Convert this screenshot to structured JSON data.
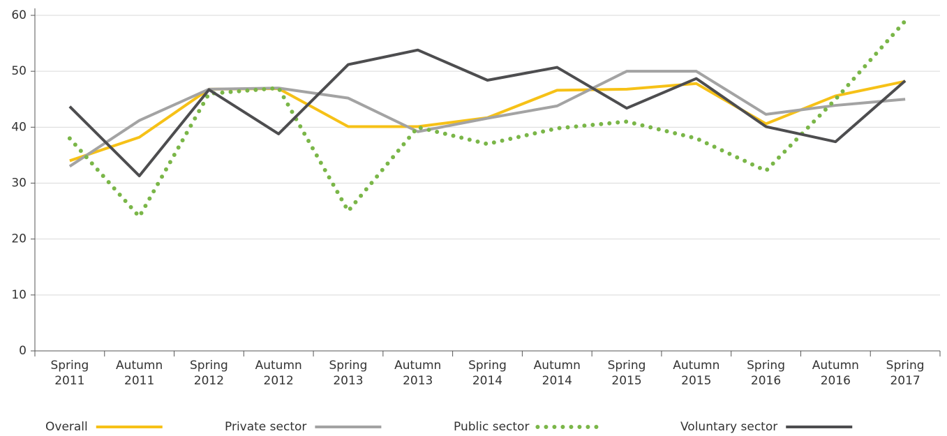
{
  "chart_data": {
    "type": "line",
    "categories": [
      "Spring 2011",
      "Autumn 2011",
      "Spring 2012",
      "Autumn 2012",
      "Spring 2013",
      "Autumn 2013",
      "Spring 2014",
      "Autumn 2014",
      "Spring 2015",
      "Autumn 2015",
      "Spring 2016",
      "Autumn 2016",
      "Spring 2017"
    ],
    "series": [
      {
        "name": "Overall",
        "color": "#f6c117",
        "style": "solid",
        "values": [
          34,
          38.2,
          46.8,
          46.9,
          40.1,
          40.1,
          41.7,
          46.6,
          46.8,
          47.8,
          40.6,
          45.6,
          48.2
        ]
      },
      {
        "name": "Private sector",
        "color": "#a3a3a3",
        "style": "solid",
        "values": [
          33,
          41.2,
          46.8,
          47,
          45.2,
          39.2,
          41.6,
          43.8,
          50,
          50,
          42.3,
          43.9,
          45
        ]
      },
      {
        "name": "Public sector",
        "color": "#7ab648",
        "style": "dotted",
        "values": [
          38,
          24,
          46,
          47,
          25,
          40,
          37,
          39.8,
          41,
          38,
          32.2,
          45,
          59
        ]
      },
      {
        "name": "Voluntary sector",
        "color": "#4d4d4f",
        "style": "solid",
        "values": [
          43.7,
          31.3,
          46.7,
          38.8,
          51.2,
          53.8,
          48.4,
          50.7,
          43.4,
          48.7,
          40.1,
          37.4,
          48.3
        ]
      }
    ],
    "ylim": [
      0,
      60
    ],
    "yticks": [
      0,
      10,
      20,
      30,
      40,
      50,
      60
    ],
    "grid": true,
    "legend": "bottom"
  }
}
